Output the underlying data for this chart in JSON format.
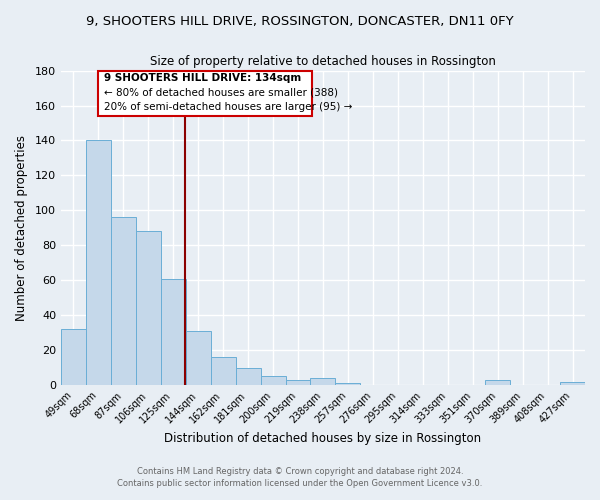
{
  "title": "9, SHOOTERS HILL DRIVE, ROSSINGTON, DONCASTER, DN11 0FY",
  "subtitle": "Size of property relative to detached houses in Rossington",
  "xlabel": "Distribution of detached houses by size in Rossington",
  "ylabel": "Number of detached properties",
  "footer_line1": "Contains HM Land Registry data © Crown copyright and database right 2024.",
  "footer_line2": "Contains public sector information licensed under the Open Government Licence v3.0.",
  "bin_labels": [
    "49sqm",
    "68sqm",
    "87sqm",
    "106sqm",
    "125sqm",
    "144sqm",
    "162sqm",
    "181sqm",
    "200sqm",
    "219sqm",
    "238sqm",
    "257sqm",
    "276sqm",
    "295sqm",
    "314sqm",
    "333sqm",
    "351sqm",
    "370sqm",
    "389sqm",
    "408sqm",
    "427sqm"
  ],
  "bar_heights": [
    32,
    140,
    96,
    88,
    61,
    31,
    16,
    10,
    5,
    3,
    4,
    1,
    0,
    0,
    0,
    0,
    0,
    3,
    0,
    0,
    2
  ],
  "bar_color": "#c5d8ea",
  "bar_edge_color": "#6aaed6",
  "ylim": [
    0,
    180
  ],
  "yticks": [
    0,
    20,
    40,
    60,
    80,
    100,
    120,
    140,
    160,
    180
  ],
  "vline_color": "#8b0000",
  "vline_x": 4.47,
  "annotation_text_line1": "9 SHOOTERS HILL DRIVE: 134sqm",
  "annotation_text_line2": "← 80% of detached houses are smaller (388)",
  "annotation_text_line3": "20% of semi-detached houses are larger (95) →",
  "background_color": "#e8eef4",
  "plot_bg_color": "#e8eef4",
  "grid_color": "#ffffff",
  "ann_box_color": "#cc0000",
  "ann_box_facecolor": "#ffffff"
}
